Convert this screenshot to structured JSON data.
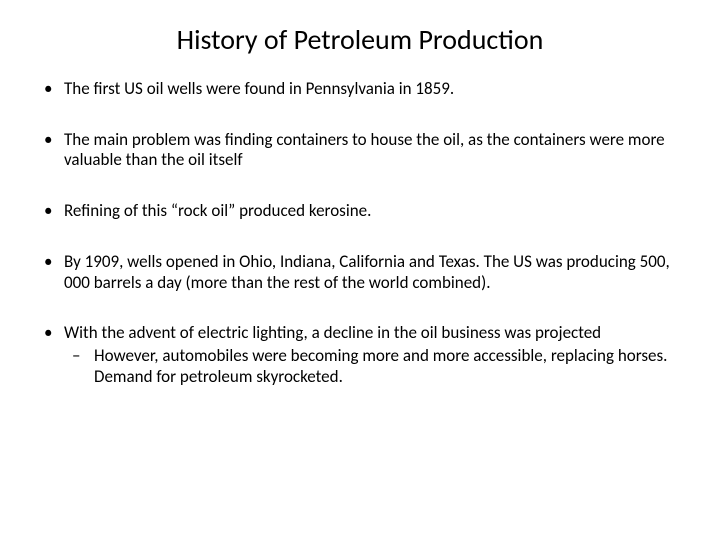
{
  "title": "History of Petroleum Production",
  "bullets": [
    {
      "text": "The first US oil wells were found in Pennsylvania in 1859."
    },
    {
      "text": "The main problem was finding containers to house the oil, as the containers were more valuable than the oil itself"
    },
    {
      "text": "Refining of this “rock oil” produced kerosine."
    },
    {
      "text": "By 1909, wells opened in Ohio, Indiana, California and Texas.  The US was producing 500, 000 barrels a day (more than the rest of the world combined)."
    },
    {
      "text": "With the advent of electric lighting, a decline in the oil business was projected",
      "sub": [
        "However, automobiles were becoming more and more accessible, replacing horses.  Demand for petroleum skyrocketed."
      ]
    }
  ],
  "style": {
    "background_color": "#ffffff",
    "text_color": "#000000",
    "title_fontsize": 28,
    "body_fontsize": 17,
    "font_family": "Calibri"
  }
}
